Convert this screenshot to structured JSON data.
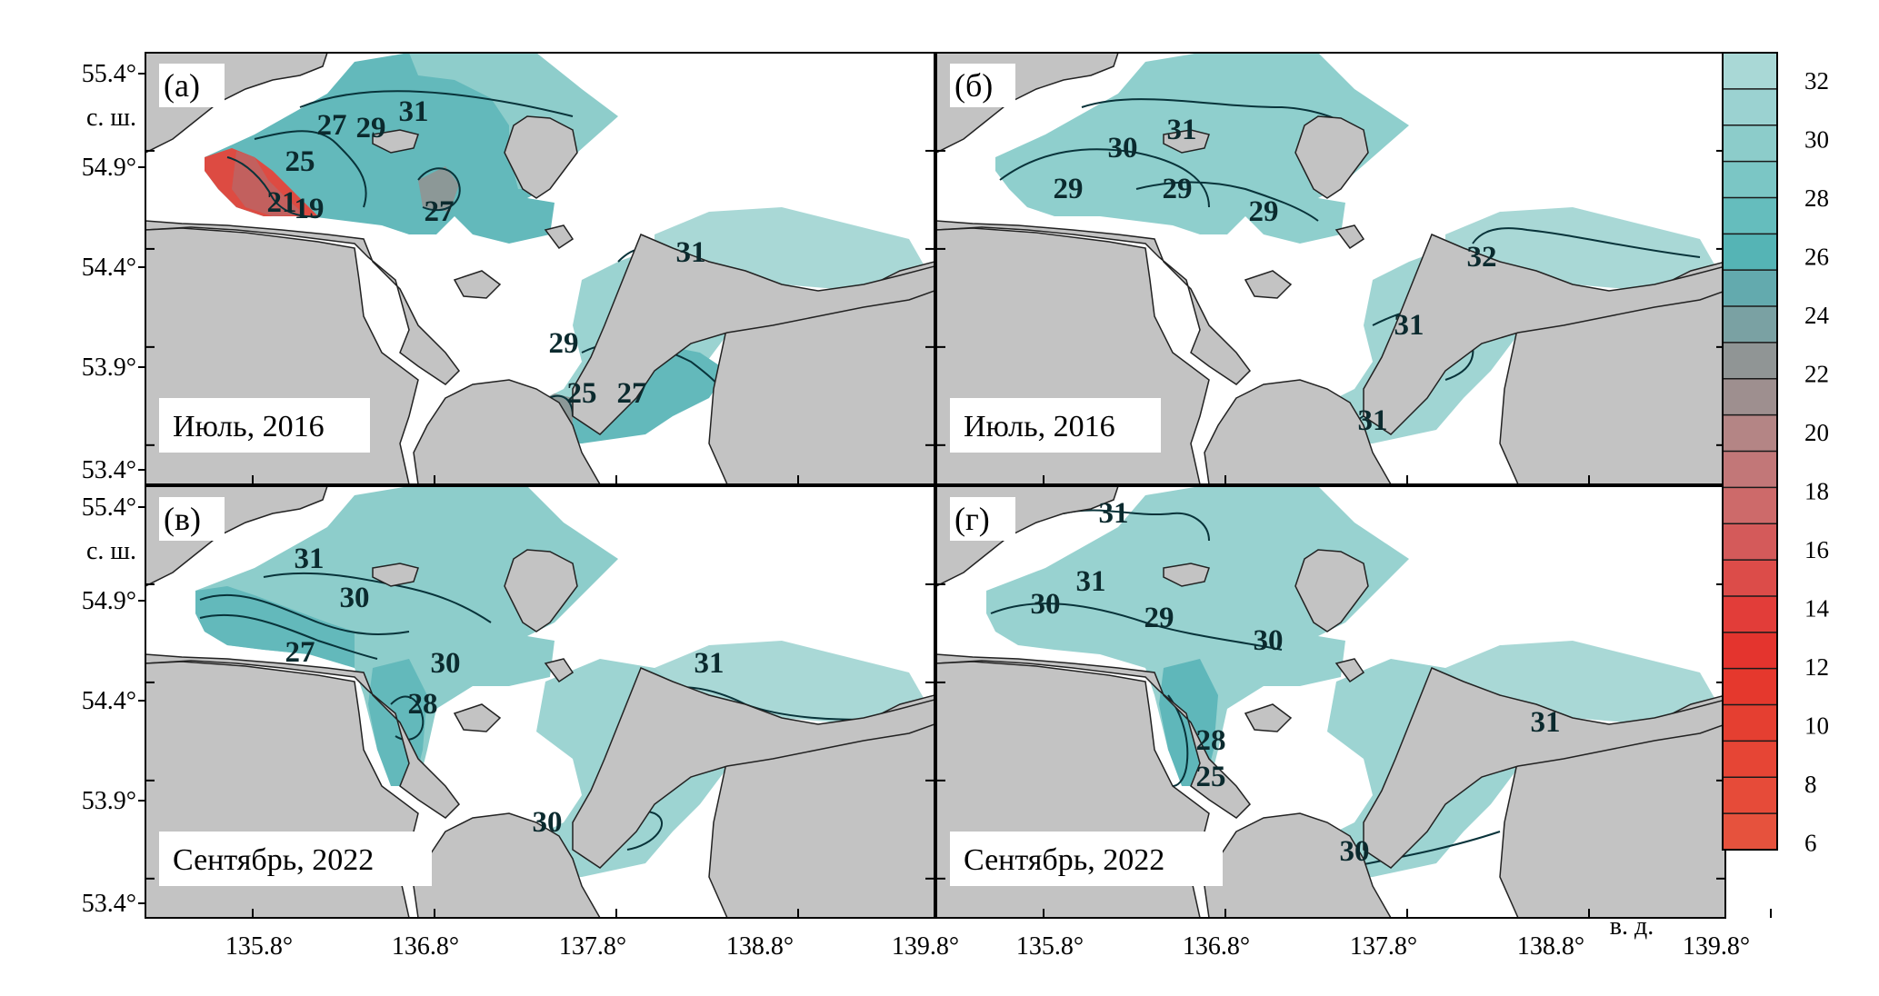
{
  "colors": {
    "land": "#c3c3c3",
    "salinity_high": "#a8d8d6",
    "salinity_mid": "#5fbcbf",
    "salinity_low": "#e63a2d",
    "isoline": "#08333a"
  },
  "axes": {
    "lat_ticks": [
      "55.4°",
      "54.9°",
      "54.4°",
      "53.9°",
      "53.4°"
    ],
    "lat_unit": "с. ш.",
    "lon_ticks": [
      "135.8°",
      "136.8°",
      "137.8°",
      "138.8°",
      "139.8°"
    ],
    "lon_unit": "в. д."
  },
  "panels": [
    {
      "letter": "(а)",
      "caption": "Июль, 2016",
      "contours": [
        "27",
        "29",
        "31",
        "25",
        "21",
        "19",
        "27",
        "29",
        "27",
        "25",
        "31"
      ]
    },
    {
      "letter": "(б)",
      "caption": "Июль, 2016",
      "contours": [
        "31",
        "30",
        "29",
        "29",
        "29",
        "32",
        "31",
        "31"
      ]
    },
    {
      "letter": "(в)",
      "caption": "Сентябрь, 2022",
      "contours": [
        "31",
        "30",
        "27",
        "30",
        "28",
        "31",
        "30"
      ]
    },
    {
      "letter": "(г)",
      "caption": "Сентябрь, 2022",
      "contours": [
        "31",
        "31",
        "30",
        "29",
        "30",
        "28",
        "25",
        "31",
        "30"
      ]
    }
  ],
  "colorbar": {
    "values": [
      "32",
      "30",
      "28",
      "26",
      "24",
      "22",
      "20",
      "18",
      "16",
      "14",
      "12",
      "10",
      "8",
      "6"
    ],
    "colors": [
      "#a9d8d6",
      "#9bd2d1",
      "#8cccca",
      "#7bc6c5",
      "#65bdbd",
      "#55b4b5",
      "#63aaae",
      "#7aa1a3",
      "#909595",
      "#9e8f8f",
      "#b48585",
      "#c27778",
      "#cd6a6a",
      "#d45a5a",
      "#dc4c49",
      "#e23d39",
      "#e4342e",
      "#e5382d",
      "#e53f31",
      "#e64535",
      "#e64b39",
      "#e6523d"
    ]
  }
}
